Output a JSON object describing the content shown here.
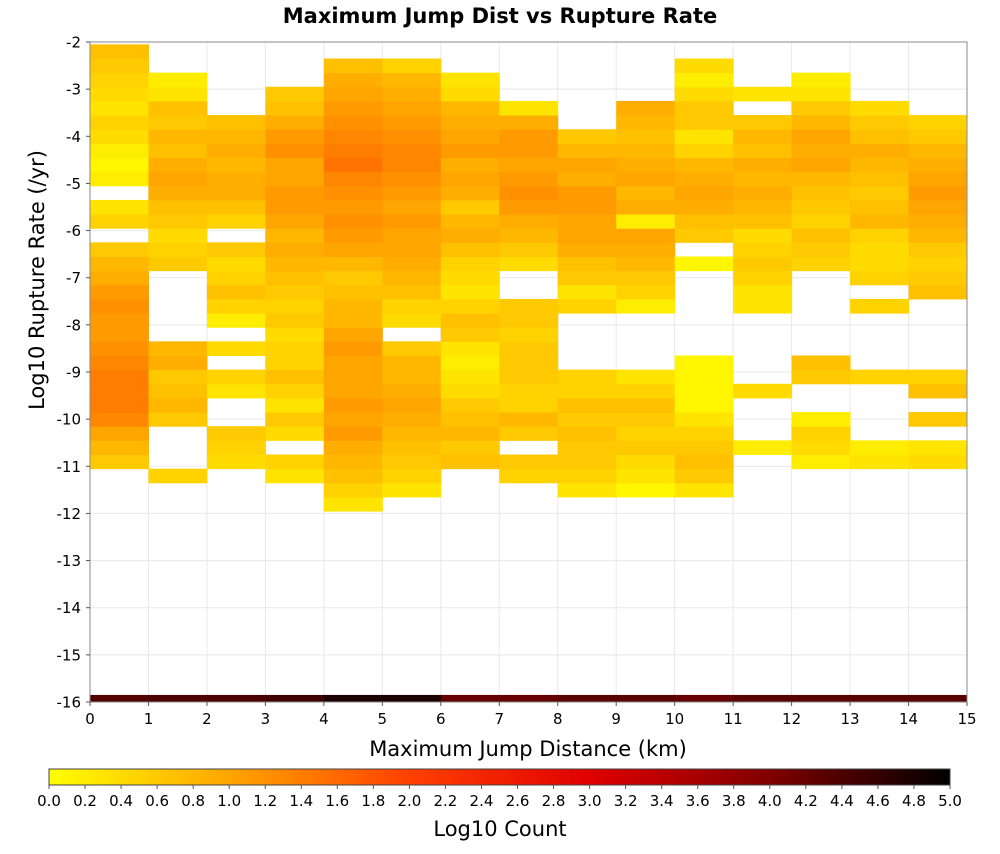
{
  "chart_data": {
    "type": "heatmap",
    "title": "Maximum Jump Dist vs Rupture Rate",
    "xlabel": "Maximum Jump Distance (km)",
    "ylabel": "Log10 Rupture Rate (/yr)",
    "xlim": [
      0,
      15
    ],
    "ylim": [
      -16,
      -2
    ],
    "x_ticks": [
      "0",
      "1",
      "2",
      "3",
      "4",
      "5",
      "6",
      "7",
      "8",
      "9",
      "10",
      "11",
      "12",
      "13",
      "14",
      "15"
    ],
    "y_ticks": [
      "-2",
      "-3",
      "-4",
      "-5",
      "-6",
      "-7",
      "-8",
      "-9",
      "-10",
      "-11",
      "-12",
      "-13",
      "-14",
      "-15",
      "-16"
    ],
    "grid": true,
    "colorbar": {
      "label": "Log10 Count",
      "range": [
        0,
        5
      ],
      "colors": [
        "#ffff00",
        "#ffa500",
        "#ff4000",
        "#e00000",
        "#800000",
        "#000000"
      ],
      "ticks": [
        "0.0",
        "0.2",
        "0.4",
        "0.6",
        "0.8",
        "1.0",
        "1.2",
        "1.4",
        "1.6",
        "1.8",
        "2.0",
        "2.2",
        "2.4",
        "2.6",
        "2.8",
        "3.0",
        "3.2",
        "3.4",
        "3.6",
        "3.8",
        "4.0",
        "4.2",
        "4.4",
        "4.6",
        "4.8",
        "5.0"
      ]
    },
    "bin_height_log10": 0.3,
    "columns": [
      {
        "x": [
          0,
          1
        ],
        "y_start": -11.05,
        "cells": [
          0.6,
          0.8,
          1.0,
          1.3,
          1.4,
          1.4,
          1.4,
          1.3,
          1.2,
          1.1,
          1.1,
          1.2,
          1.1,
          0.9,
          0.8,
          0.6,
          null,
          0.5,
          0.3,
          null,
          0.2,
          0.1,
          0.2,
          0.4,
          0.5,
          0.3,
          0.4,
          0.5,
          0.6,
          0.7
        ]
      },
      {
        "x": [
          1,
          2
        ],
        "y_start": -11.35,
        "cells": [
          0.5,
          null,
          null,
          null,
          0.6,
          0.8,
          0.7,
          0.6,
          0.9,
          0.8,
          null,
          null,
          null,
          null,
          null,
          0.6,
          0.5,
          0.4,
          0.6,
          0.7,
          0.9,
          1.0,
          0.9,
          0.7,
          0.8,
          0.6,
          0.7,
          0.3,
          0.2
        ]
      },
      {
        "x": [
          2,
          3
        ],
        "y_start": -11.05,
        "cells": [
          0.4,
          0.5,
          0.6,
          null,
          null,
          0.3,
          0.5,
          null,
          0.4,
          null,
          0.2,
          0.5,
          0.7,
          0.5,
          0.4,
          0.6,
          null,
          0.5,
          0.7,
          0.9,
          0.9,
          0.8,
          0.9,
          0.8,
          0.7
        ]
      },
      {
        "x": [
          3,
          4
        ],
        "y_start": -11.35,
        "cells": [
          0.3,
          0.5,
          null,
          0.4,
          0.6,
          0.3,
          0.5,
          0.7,
          0.5,
          0.5,
          0.4,
          0.6,
          0.5,
          0.6,
          0.7,
          0.8,
          0.9,
          0.8,
          1.0,
          1.1,
          1.1,
          1.0,
          1.0,
          1.2,
          1.1,
          0.9,
          0.7,
          0.6
        ]
      },
      {
        "x": [
          4,
          5
        ],
        "y_start": -11.95,
        "cells": [
          0.3,
          0.5,
          0.7,
          0.8,
          0.9,
          1.1,
          1.0,
          1.1,
          1.0,
          1.0,
          1.0,
          1.1,
          1.0,
          0.8,
          0.8,
          0.7,
          0.6,
          0.8,
          1.0,
          1.1,
          1.2,
          1.1,
          1.2,
          1.3,
          1.5,
          1.4,
          1.3,
          1.2,
          1.1,
          1.0,
          0.9,
          0.7
        ]
      },
      {
        "x": [
          5,
          6
        ],
        "y_start": -11.65,
        "cells": [
          0.3,
          0.5,
          0.6,
          0.7,
          0.8,
          0.9,
          1.0,
          0.9,
          0.8,
          0.8,
          0.6,
          null,
          0.4,
          0.5,
          0.7,
          0.8,
          0.9,
          1.0,
          1.0,
          1.1,
          1.0,
          1.1,
          1.2,
          1.3,
          1.3,
          1.2,
          1.1,
          1.0,
          0.9,
          0.8,
          0.5
        ]
      },
      {
        "x": [
          6,
          7
        ],
        "y_start": -11.05,
        "cells": [
          0.7,
          0.6,
          0.8,
          0.7,
          0.6,
          0.4,
          0.3,
          0.2,
          0.3,
          0.6,
          0.7,
          0.5,
          0.3,
          0.4,
          0.5,
          0.7,
          0.9,
          0.8,
          0.6,
          0.9,
          1.0,
          0.9,
          1.1,
          1.0,
          0.9,
          0.8,
          0.4,
          0.3
        ]
      },
      {
        "x": [
          7,
          8
        ],
        "y_start": -11.35,
        "cells": [
          0.5,
          0.6,
          null,
          0.6,
          0.8,
          0.5,
          0.5,
          0.6,
          0.6,
          0.6,
          0.5,
          0.6,
          0.6,
          null,
          null,
          0.4,
          0.6,
          0.8,
          0.9,
          1.1,
          1.2,
          1.1,
          1.0,
          1.1,
          1.1,
          0.9,
          0.3
        ]
      },
      {
        "x": [
          8,
          9
        ],
        "y_start": -11.65,
        "cells": [
          0.3,
          0.5,
          0.6,
          0.6,
          0.7,
          0.6,
          0.7,
          0.5,
          0.5,
          null,
          null,
          null,
          null,
          0.5,
          0.3,
          0.6,
          0.7,
          0.9,
          1.0,
          1.0,
          1.1,
          1.1,
          0.9,
          1.0,
          0.8,
          0.6
        ]
      },
      {
        "x": [
          9,
          10
        ],
        "y_start": -11.65,
        "cells": [
          0.1,
          0.3,
          0.4,
          0.6,
          0.5,
          0.6,
          0.7,
          0.5,
          0.3,
          null,
          null,
          null,
          null,
          0.2,
          0.5,
          0.6,
          0.8,
          0.9,
          1.0,
          0.2,
          0.9,
          0.8,
          1.0,
          0.9,
          0.8,
          0.7,
          0.8,
          0.9
        ]
      },
      {
        "x": [
          10,
          11
        ],
        "y_start": -11.65,
        "cells": [
          0.3,
          0.6,
          0.7,
          0.6,
          0.5,
          0.3,
          0.1,
          0.1,
          0.1,
          0.1,
          null,
          null,
          null,
          null,
          null,
          null,
          0.1,
          null,
          0.6,
          0.7,
          0.9,
          1.0,
          0.9,
          0.8,
          0.5,
          0.3,
          0.6,
          0.6,
          0.4,
          0.2,
          0.4
        ]
      },
      {
        "x": [
          11,
          12
        ],
        "y_start": -10.75,
        "cells": [
          0.2,
          null,
          null,
          null,
          0.4,
          null,
          null,
          null,
          null,
          null,
          0.3,
          0.3,
          0.5,
          0.6,
          0.5,
          0.4,
          0.7,
          0.8,
          0.9,
          0.8,
          0.9,
          0.7,
          0.8,
          0.6,
          null,
          0.3
        ]
      },
      {
        "x": [
          12,
          13
        ],
        "y_start": -11.05,
        "cells": [
          0.2,
          0.4,
          0.5,
          0.2,
          null,
          null,
          0.6,
          0.7,
          null,
          null,
          null,
          null,
          null,
          null,
          0.5,
          0.6,
          0.7,
          0.5,
          0.6,
          0.7,
          0.8,
          1.0,
          0.9,
          1.0,
          0.8,
          0.6,
          0.3,
          0.2
        ]
      },
      {
        "x": [
          13,
          14
        ],
        "y_start": -11.05,
        "cells": [
          0.3,
          0.2,
          null,
          null,
          null,
          null,
          0.5,
          null,
          null,
          null,
          null,
          0.5,
          null,
          0.5,
          0.4,
          0.4,
          0.5,
          0.8,
          0.7,
          0.6,
          0.7,
          0.8,
          0.9,
          0.7,
          0.6,
          0.4
        ]
      },
      {
        "x": [
          14,
          15
        ],
        "y_start": -11.05,
        "cells": [
          0.4,
          0.3,
          null,
          0.6,
          null,
          0.7,
          0.5,
          null,
          null,
          null,
          null,
          null,
          0.7,
          0.6,
          0.5,
          0.6,
          0.8,
          0.9,
          1.0,
          1.1,
          1.0,
          0.9,
          0.8,
          0.6,
          0.5
        ]
      }
    ],
    "bottom_row": {
      "y": [
        -16.0,
        -15.85
      ],
      "cells": [
        {
          "x": [
            0,
            1
          ],
          "value": 4.35
        },
        {
          "x": [
            1,
            2
          ],
          "value": 4.4
        },
        {
          "x": [
            2,
            3
          ],
          "value": 4.4
        },
        {
          "x": [
            3,
            4
          ],
          "value": 4.5
        },
        {
          "x": [
            4,
            5
          ],
          "value": 4.8
        },
        {
          "x": [
            5,
            6
          ],
          "value": 4.8
        },
        {
          "x": [
            6,
            7
          ],
          "value": 4.2
        },
        {
          "x": [
            7,
            8
          ],
          "value": 4.2
        },
        {
          "x": [
            8,
            9
          ],
          "value": 4.3
        },
        {
          "x": [
            9,
            10
          ],
          "value": 4.3
        },
        {
          "x": [
            10,
            11
          ],
          "value": 4.2
        },
        {
          "x": [
            11,
            12
          ],
          "value": 4.3
        },
        {
          "x": [
            12,
            13
          ],
          "value": 4.3
        },
        {
          "x": [
            13,
            14
          ],
          "value": 4.3
        },
        {
          "x": [
            14,
            15
          ],
          "value": 4.3
        }
      ]
    }
  }
}
